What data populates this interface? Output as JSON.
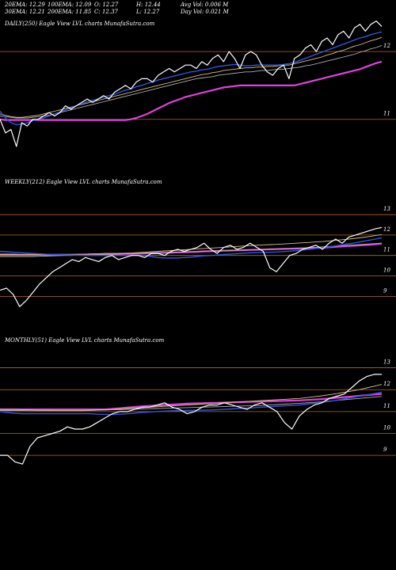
{
  "header": {
    "ema20": "20EMA: 12.29",
    "ema30": "30EMA: 12.21",
    "ema100": "100EMA: 12.09",
    "ema200": "200EMA: 11.85",
    "open": "O: 12.27",
    "close": "C: 12.37",
    "high": "H: 12.44",
    "low": "L: 12.27",
    "avg_vol": "Avg Vol: 0.006  M",
    "day_vol": "Day Vol: 0.021 M"
  },
  "colors": {
    "background": "#000000",
    "price": "#ffffff",
    "ema_fast": "#2f55e0",
    "ema_slow": "#e040e0",
    "ema_mid1": "#d8c080",
    "ema_mid2": "#b0b0b0",
    "gridline": "#b36a22",
    "text": "#ffffff"
  },
  "chart_data": [
    {
      "type": "line",
      "panel": "daily",
      "title": "DAILY(250) Eagle   View  LVL  charts MunafaSutra.com",
      "ylim": [
        10.6,
        12.55
      ],
      "grid_levels": [
        12,
        11
      ],
      "tick_labels": [
        "12",
        "11"
      ],
      "series": [
        {
          "role": "price",
          "values": [
            11.0,
            10.8,
            10.85,
            10.6,
            10.95,
            10.9,
            11.0,
            11.0,
            11.05,
            11.1,
            11.05,
            11.1,
            11.2,
            11.15,
            11.2,
            11.25,
            11.3,
            11.25,
            11.3,
            11.35,
            11.3,
            11.4,
            11.45,
            11.5,
            11.45,
            11.55,
            11.6,
            11.6,
            11.55,
            11.65,
            11.7,
            11.75,
            11.7,
            11.75,
            11.8,
            11.8,
            11.75,
            11.85,
            11.8,
            11.9,
            11.95,
            11.85,
            12.0,
            11.9,
            11.75,
            11.95,
            12.0,
            11.95,
            11.8,
            11.7,
            11.65,
            11.75,
            11.8,
            11.6,
            11.9,
            11.95,
            12.05,
            12.1,
            12.0,
            12.15,
            12.2,
            12.1,
            12.25,
            12.3,
            12.2,
            12.35,
            12.4,
            12.3,
            12.4,
            12.45,
            12.37
          ]
        },
        {
          "role": "ema_fast",
          "values": [
            11.12,
            11.02,
            10.95,
            10.92,
            10.93,
            10.95,
            10.98,
            11.0,
            11.02,
            11.05,
            11.08,
            11.11,
            11.14,
            11.17,
            11.2,
            11.23,
            11.26,
            11.28,
            11.3,
            11.33,
            11.35,
            11.37,
            11.4,
            11.43,
            11.45,
            11.48,
            11.5,
            11.53,
            11.55,
            11.58,
            11.6,
            11.62,
            11.64,
            11.66,
            11.68,
            11.7,
            11.71,
            11.73,
            11.74,
            11.76,
            11.78,
            11.79,
            11.8,
            11.81,
            11.8,
            11.79,
            11.79,
            11.8,
            11.8,
            11.8,
            11.8,
            11.8,
            11.81,
            11.82,
            11.84,
            11.87,
            11.9,
            11.93,
            11.96,
            11.99,
            12.02,
            12.05,
            12.08,
            12.11,
            12.14,
            12.17,
            12.2,
            12.22,
            12.25,
            12.27,
            12.29
          ]
        },
        {
          "role": "ema_mid1",
          "values": [
            11.08,
            11.06,
            11.04,
            11.03,
            11.03,
            11.04,
            11.05,
            11.06,
            11.08,
            11.1,
            11.12,
            11.14,
            11.16,
            11.18,
            11.2,
            11.22,
            11.24,
            11.26,
            11.28,
            11.3,
            11.32,
            11.34,
            11.36,
            11.38,
            11.4,
            11.42,
            11.44,
            11.46,
            11.48,
            11.5,
            11.52,
            11.54,
            11.56,
            11.58,
            11.6,
            11.62,
            11.64,
            11.66,
            11.67,
            11.69,
            11.7,
            11.72,
            11.73,
            11.74,
            11.75,
            11.76,
            11.76,
            11.77,
            11.77,
            11.78,
            11.78,
            11.79,
            11.8,
            11.8,
            11.82,
            11.84,
            11.86,
            11.88,
            11.9,
            11.92,
            11.95,
            11.97,
            12.0,
            12.02,
            12.05,
            12.08,
            12.1,
            12.13,
            12.16,
            12.18,
            12.21
          ]
        },
        {
          "role": "ema_mid2",
          "values": [
            11.05,
            11.04,
            11.03,
            11.02,
            11.02,
            11.02,
            11.03,
            11.04,
            11.05,
            11.06,
            11.08,
            11.1,
            11.12,
            11.14,
            11.16,
            11.18,
            11.2,
            11.22,
            11.24,
            11.26,
            11.28,
            11.3,
            11.32,
            11.34,
            11.36,
            11.38,
            11.4,
            11.42,
            11.44,
            11.46,
            11.48,
            11.5,
            11.52,
            11.54,
            11.56,
            11.58,
            11.6,
            11.61,
            11.62,
            11.63,
            11.65,
            11.66,
            11.67,
            11.68,
            11.69,
            11.7,
            11.7,
            11.71,
            11.72,
            11.72,
            11.73,
            11.74,
            11.74,
            11.75,
            11.76,
            11.77,
            11.79,
            11.8,
            11.82,
            11.84,
            11.86,
            11.88,
            11.9,
            11.92,
            11.94,
            11.96,
            11.99,
            12.01,
            12.04,
            12.06,
            12.09
          ]
        },
        {
          "role": "ema_slow",
          "values": [
            11.0,
            10.99,
            10.99,
            10.99,
            10.99,
            10.99,
            10.99,
            10.99,
            10.99,
            10.99,
            10.99,
            10.99,
            10.99,
            10.99,
            10.99,
            10.99,
            10.99,
            10.99,
            10.99,
            10.99,
            10.99,
            10.99,
            10.99,
            10.99,
            11.0,
            11.02,
            11.05,
            11.08,
            11.12,
            11.16,
            11.2,
            11.24,
            11.27,
            11.3,
            11.33,
            11.35,
            11.37,
            11.39,
            11.41,
            11.43,
            11.45,
            11.47,
            11.48,
            11.49,
            11.5,
            11.5,
            11.5,
            11.5,
            11.5,
            11.5,
            11.5,
            11.5,
            11.5,
            11.5,
            11.5,
            11.52,
            11.54,
            11.56,
            11.58,
            11.6,
            11.62,
            11.64,
            11.66,
            11.68,
            11.7,
            11.72,
            11.74,
            11.77,
            11.8,
            11.83,
            11.85
          ]
        }
      ]
    },
    {
      "type": "line",
      "panel": "weekly",
      "title": "WEEKLY(212) Eagle   View  LVL  charts MunafaSutra.com",
      "ylim": [
        8.2,
        13.35
      ],
      "grid_levels": [
        13,
        12,
        11,
        10,
        9
      ],
      "tick_labels": [
        "13",
        "12",
        "11",
        "10",
        "9"
      ],
      "series": [
        {
          "role": "price",
          "values": [
            9.3,
            9.4,
            9.1,
            8.5,
            8.8,
            9.2,
            9.6,
            9.9,
            10.2,
            10.4,
            10.6,
            10.8,
            10.7,
            10.9,
            10.8,
            10.7,
            10.9,
            11.0,
            10.8,
            10.9,
            11.0,
            11.0,
            10.9,
            11.1,
            11.1,
            11.0,
            11.2,
            11.3,
            11.2,
            11.3,
            11.4,
            11.6,
            11.3,
            11.1,
            11.4,
            11.5,
            11.3,
            11.4,
            11.6,
            11.4,
            11.2,
            10.4,
            10.2,
            10.6,
            11.0,
            11.1,
            11.3,
            11.4,
            11.5,
            11.3,
            11.6,
            11.8,
            11.6,
            11.9,
            12.0,
            12.1,
            12.2,
            12.3,
            12.37
          ]
        },
        {
          "role": "ema_fast",
          "values": [
            11.2,
            11.18,
            11.16,
            11.14,
            11.12,
            11.1,
            11.08,
            11.06,
            11.05,
            11.04,
            11.03,
            11.02,
            11.01,
            11.0,
            11.0,
            11.0,
            11.0,
            11.0,
            11.0,
            11.0,
            11.0,
            11.0,
            11.0,
            10.95,
            10.9,
            10.88,
            10.87,
            10.88,
            10.9,
            10.92,
            10.95,
            10.98,
            11.0,
            11.02,
            11.05,
            11.07,
            11.09,
            11.11,
            11.13,
            11.14,
            11.15,
            11.16,
            11.17,
            11.19,
            11.21,
            11.24,
            11.27,
            11.3,
            11.34,
            11.38,
            11.42,
            11.47,
            11.52,
            11.57,
            11.62,
            11.68,
            11.74,
            11.8,
            11.86
          ]
        },
        {
          "role": "ema_mid1",
          "values": [
            11.05,
            11.05,
            11.05,
            11.05,
            11.05,
            11.05,
            11.05,
            11.05,
            11.05,
            11.05,
            11.05,
            11.05,
            11.06,
            11.07,
            11.08,
            11.09,
            11.1,
            11.1,
            11.1,
            11.11,
            11.12,
            11.14,
            11.16,
            11.18,
            11.2,
            11.22,
            11.24,
            11.26,
            11.28,
            11.3,
            11.32,
            11.34,
            11.36,
            11.38,
            11.4,
            11.42,
            11.44,
            11.46,
            11.48,
            11.5,
            11.52,
            11.53,
            11.54,
            11.56,
            11.58,
            11.6,
            11.62,
            11.64,
            11.66,
            11.68,
            11.71,
            11.74,
            11.77,
            11.8,
            11.84,
            11.88,
            11.92,
            11.97,
            12.02
          ]
        },
        {
          "role": "ema_mid2",
          "values": [
            10.95,
            10.95,
            10.95,
            10.95,
            10.95,
            10.95,
            10.96,
            10.97,
            10.98,
            10.99,
            11.0,
            11.0,
            11.01,
            11.02,
            11.03,
            11.04,
            11.05,
            11.06,
            11.07,
            11.08,
            11.09,
            11.1,
            11.11,
            11.12,
            11.13,
            11.14,
            11.15,
            11.16,
            11.17,
            11.18,
            11.19,
            11.2,
            11.21,
            11.22,
            11.23,
            11.24,
            11.25,
            11.26,
            11.27,
            11.28,
            11.29,
            11.3,
            11.31,
            11.32,
            11.33,
            11.34,
            11.36,
            11.38,
            11.4,
            11.42,
            11.44,
            11.46,
            11.48,
            11.5,
            11.52,
            11.54,
            11.56,
            11.58,
            11.6
          ]
        },
        {
          "role": "ema_slow",
          "values": [
            11.05,
            11.05,
            11.05,
            11.04,
            11.04,
            11.04,
            11.04,
            11.04,
            11.04,
            11.04,
            11.04,
            11.04,
            11.04,
            11.04,
            11.04,
            11.04,
            11.05,
            11.06,
            11.07,
            11.08,
            11.08,
            11.09,
            11.1,
            11.11,
            11.12,
            11.13,
            11.14,
            11.15,
            11.16,
            11.17,
            11.18,
            11.2,
            11.21,
            11.22,
            11.23,
            11.24,
            11.25,
            11.26,
            11.27,
            11.28,
            11.29,
            11.3,
            11.31,
            11.32,
            11.33,
            11.34,
            11.35,
            11.36,
            11.37,
            11.38,
            11.4,
            11.42,
            11.44,
            11.46,
            11.48,
            11.5,
            11.52,
            11.55,
            11.58
          ]
        }
      ]
    },
    {
      "type": "line",
      "panel": "monthly",
      "title": "MONTHLY(51) Eagle   View  LVL  charts MunafaSutra.com",
      "ylim": [
        8.1,
        13.6
      ],
      "grid_levels": [
        13,
        12,
        11,
        10,
        9
      ],
      "tick_labels": [
        "13",
        "12",
        "11",
        "10",
        "9"
      ],
      "series": [
        {
          "role": "price",
          "values": [
            9.0,
            9.0,
            8.7,
            8.6,
            9.4,
            9.8,
            9.9,
            10.0,
            10.1,
            10.3,
            10.2,
            10.2,
            10.3,
            10.5,
            10.7,
            10.9,
            11.0,
            11.0,
            11.1,
            11.2,
            11.2,
            11.3,
            11.4,
            11.2,
            11.1,
            10.9,
            11.0,
            11.2,
            11.3,
            11.3,
            11.4,
            11.3,
            11.2,
            11.1,
            11.3,
            11.4,
            11.2,
            11.0,
            10.5,
            10.2,
            10.8,
            11.1,
            11.3,
            11.4,
            11.6,
            11.7,
            11.8,
            12.1,
            12.4,
            12.6,
            12.7,
            12.7
          ]
        },
        {
          "role": "ema_fast",
          "values": [
            11.0,
            10.95,
            10.92,
            10.9,
            10.9,
            10.9,
            10.9,
            10.9,
            10.9,
            10.9,
            10.9,
            10.9,
            10.9,
            10.88,
            10.87,
            10.86,
            10.88,
            10.9,
            10.93,
            10.96,
            10.98,
            11.0,
            11.02,
            11.03,
            11.04,
            11.05,
            11.06,
            11.06,
            11.07,
            11.08,
            11.1,
            11.12,
            11.14,
            11.16,
            11.18,
            11.2,
            11.22,
            11.24,
            11.26,
            11.28,
            11.3,
            11.34,
            11.38,
            11.42,
            11.46,
            11.52,
            11.58,
            11.64,
            11.7,
            11.76,
            11.82,
            11.88
          ]
        },
        {
          "role": "ema_mid1",
          "values": [
            11.1,
            11.1,
            11.1,
            11.09,
            11.08,
            11.07,
            11.07,
            11.06,
            11.06,
            11.06,
            11.06,
            11.06,
            11.07,
            11.08,
            11.09,
            11.1,
            11.12,
            11.14,
            11.16,
            11.18,
            11.2,
            11.22,
            11.24,
            11.26,
            11.28,
            11.3,
            11.32,
            11.34,
            11.36,
            11.38,
            11.4,
            11.42,
            11.44,
            11.46,
            11.48,
            11.5,
            11.52,
            11.54,
            11.56,
            11.58,
            11.6,
            11.64,
            11.68,
            11.72,
            11.77,
            11.82,
            11.88,
            11.94,
            12.0,
            12.08,
            12.16,
            12.24
          ]
        },
        {
          "role": "ema_mid2",
          "values": [
            11.05,
            11.05,
            11.05,
            11.05,
            11.04,
            11.04,
            11.04,
            11.04,
            11.04,
            11.04,
            11.04,
            11.04,
            11.05,
            11.06,
            11.07,
            11.08,
            11.09,
            11.1,
            11.11,
            11.12,
            11.13,
            11.14,
            11.15,
            11.16,
            11.17,
            11.18,
            11.19,
            11.2,
            11.21,
            11.22,
            11.23,
            11.24,
            11.25,
            11.26,
            11.27,
            11.28,
            11.3,
            11.32,
            11.34,
            11.36,
            11.38,
            11.4,
            11.42,
            11.45,
            11.48,
            11.51,
            11.54,
            11.57,
            11.6,
            11.63,
            11.66,
            11.69
          ]
        },
        {
          "role": "ema_slow",
          "values": [
            11.1,
            11.1,
            11.1,
            11.1,
            11.1,
            11.1,
            11.1,
            11.1,
            11.1,
            11.1,
            11.1,
            11.1,
            11.1,
            11.1,
            11.1,
            11.12,
            11.15,
            11.18,
            11.21,
            11.24,
            11.26,
            11.28,
            11.3,
            11.32,
            11.34,
            11.36,
            11.37,
            11.38,
            11.39,
            11.4,
            11.41,
            11.42,
            11.43,
            11.44,
            11.45,
            11.46,
            11.47,
            11.48,
            11.49,
            11.5,
            11.51,
            11.53,
            11.55,
            11.57,
            11.6,
            11.63,
            11.66,
            11.69,
            11.72,
            11.75,
            11.78,
            11.8
          ]
        }
      ]
    }
  ]
}
